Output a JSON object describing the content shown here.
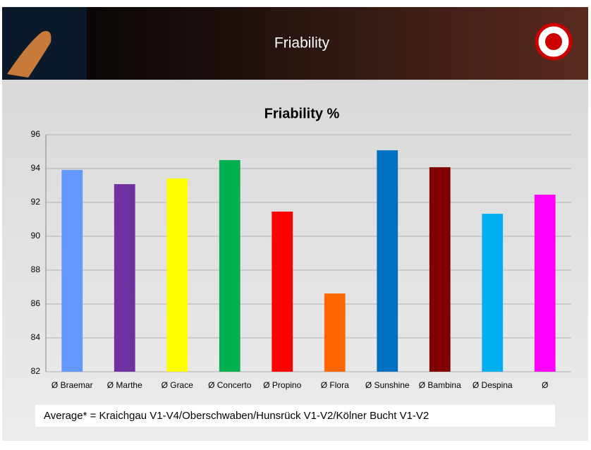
{
  "slide_title": "Friability",
  "chart_data": {
    "type": "bar",
    "title": "Friability %",
    "categories": [
      "Ø Braemar",
      "Ø Marthe",
      "Ø Grace",
      "Ø Concerto",
      "Ø Propino",
      "Ø Flora",
      "Ø Sunshine",
      "Ø Bambina",
      "Ø Despina",
      "Ø"
    ],
    "values": [
      93.92,
      93.08,
      93.42,
      94.5,
      91.46,
      86.62,
      95.08,
      94.08,
      91.33,
      92.46
    ],
    "colors": [
      "#6699ff",
      "#7030a0",
      "#ffff00",
      "#00b050",
      "#ff0000",
      "#ff6600",
      "#0070c0",
      "#800000",
      "#00b0f0",
      "#ff00ff"
    ],
    "ylim": [
      82,
      96
    ],
    "yticks": [
      82,
      84,
      86,
      88,
      90,
      92,
      94,
      96
    ],
    "grid": true
  },
  "footnote": "Average* = Kraichgau V1-V4/Oberschwaben/Hunsrück V1-V2/Kölner Bucht V1-V2"
}
